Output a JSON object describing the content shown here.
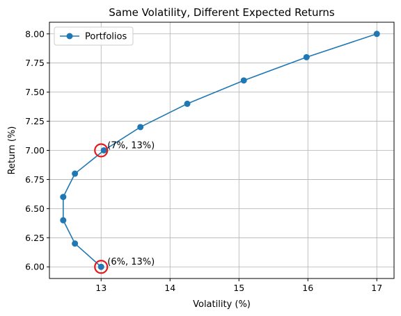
{
  "chart_data": {
    "type": "line",
    "title": "Same Volatility, Different Expected Returns",
    "xlabel": "Volatility (%)",
    "ylabel": "Return (%)",
    "xlim": [
      12.25,
      17.25
    ],
    "ylim": [
      5.9,
      8.1
    ],
    "xticks": [
      13,
      14,
      15,
      16,
      17
    ],
    "xtick_labels": [
      "13",
      "14",
      "15",
      "16",
      "17"
    ],
    "yticks": [
      6.0,
      6.25,
      6.5,
      6.75,
      7.0,
      7.25,
      7.5,
      7.75,
      8.0
    ],
    "ytick_labels": [
      "6.00",
      "6.25",
      "6.50",
      "6.75",
      "7.00",
      "7.25",
      "7.50",
      "7.75",
      "8.00"
    ],
    "grid": true,
    "legend_position": "top-left",
    "series": [
      {
        "name": "Portfolios",
        "color": "#1f77b4",
        "marker": "circle",
        "x": [
          13.0,
          12.62,
          12.45,
          12.45,
          12.62,
          13.04,
          13.57,
          14.25,
          15.07,
          15.98,
          17.0
        ],
        "y": [
          6.0,
          6.2,
          6.4,
          6.6,
          6.8,
          7.0,
          7.2,
          7.4,
          7.6,
          7.8,
          8.0
        ]
      }
    ],
    "highlights": [
      {
        "x": 13.0,
        "y": 7.0,
        "label": "(7%, 13%)",
        "color": "#e31a1c"
      },
      {
        "x": 13.0,
        "y": 6.0,
        "label": "(6%, 13%)",
        "color": "#e31a1c"
      }
    ]
  }
}
